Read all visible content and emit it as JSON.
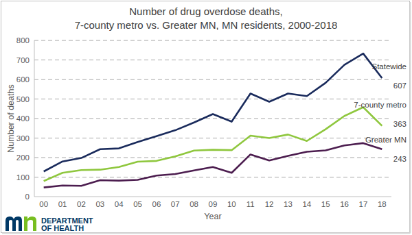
{
  "chart_data": {
    "type": "line",
    "title": [
      "Number of drug overdose deaths,",
      "7-county metro vs. Greater MN,  MN residents, 2000-2018"
    ],
    "x_label": "Year",
    "y_label": "Number of deaths",
    "categories": [
      "00",
      "01",
      "02",
      "03",
      "04",
      "05",
      "06",
      "07",
      "08",
      "09",
      "10",
      "11",
      "12",
      "13",
      "14",
      "15",
      "16",
      "17",
      "18"
    ],
    "series": [
      {
        "name": "Statewide",
        "color": "#1a2b5c",
        "values": [
          129,
          180,
          198,
          243,
          247,
          280,
          310,
          340,
          380,
          423,
          384,
          528,
          486,
          528,
          515,
          583,
          675,
          733,
          607
        ]
      },
      {
        "name": "7-county metro",
        "color": "#8fc73e",
        "values": [
          80,
          122,
          136,
          138,
          152,
          179,
          183,
          206,
          236,
          240,
          238,
          312,
          300,
          318,
          285,
          345,
          413,
          458,
          363
        ]
      },
      {
        "name": "Greater MN",
        "color": "#4c1d4f",
        "values": [
          47,
          57,
          55,
          84,
          82,
          86,
          108,
          116,
          134,
          152,
          122,
          216,
          185,
          209,
          230,
          237,
          262,
          274,
          243
        ]
      }
    ],
    "ylim": [
      0,
      800
    ],
    "yticks": [
      0,
      100,
      200,
      300,
      400,
      500,
      600,
      700,
      800
    ],
    "grid": true,
    "legend": "right",
    "annotations": [
      "DEPARTMENT",
      "OF HEALTH"
    ]
  }
}
